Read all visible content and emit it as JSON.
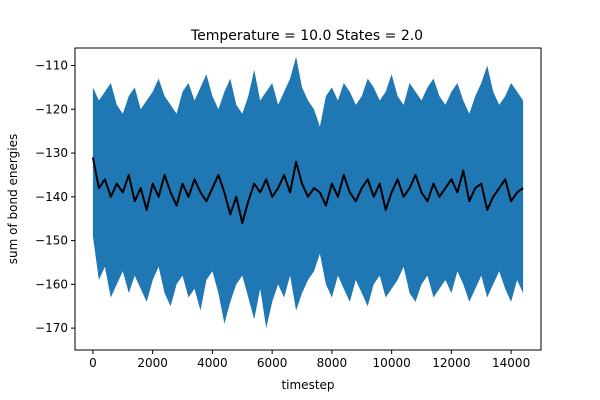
{
  "chart_data": {
    "type": "area",
    "title": "Temperature = 10.0 States = 2.0",
    "xlabel": "timestep",
    "ylabel": "sum of bond energies",
    "xlim": [
      -600,
      15000
    ],
    "ylim": [
      -175,
      -106
    ],
    "xticks": [
      0,
      2000,
      4000,
      6000,
      8000,
      10000,
      12000,
      14000
    ],
    "yticks": [
      -110,
      -120,
      -130,
      -140,
      -150,
      -160,
      -170
    ],
    "grid": false,
    "colors": {
      "band": "#1f77b4",
      "mean_line": "#000000"
    },
    "series": [
      {
        "kind": "band",
        "x": [
          0,
          200,
          400,
          600,
          800,
          1000,
          1200,
          1400,
          1600,
          1800,
          2000,
          2200,
          2400,
          2600,
          2800,
          3000,
          3200,
          3400,
          3600,
          3800,
          4000,
          4200,
          4400,
          4600,
          4800,
          5000,
          5200,
          5400,
          5600,
          5800,
          6000,
          6200,
          6400,
          6600,
          6800,
          7000,
          7200,
          7400,
          7600,
          7800,
          8000,
          8200,
          8400,
          8600,
          8800,
          9000,
          9200,
          9400,
          9600,
          9800,
          10000,
          10200,
          10400,
          10600,
          10800,
          11000,
          11200,
          11400,
          11600,
          11800,
          12000,
          12200,
          12400,
          12600,
          12800,
          13000,
          13200,
          13400,
          13600,
          13800,
          14000,
          14200,
          14400
        ],
        "upper": [
          -115,
          -118,
          -116,
          -114,
          -119,
          -121,
          -117,
          -115,
          -120,
          -118,
          -116,
          -113,
          -117,
          -119,
          -121,
          -116,
          -114,
          -118,
          -115,
          -112,
          -117,
          -120,
          -116,
          -113,
          -119,
          -121,
          -117,
          -111,
          -118,
          -116,
          -114,
          -119,
          -116,
          -113,
          -108,
          -115,
          -118,
          -120,
          -124,
          -117,
          -115,
          -118,
          -114,
          -116,
          -119,
          -117,
          -113,
          -115,
          -118,
          -116,
          -112,
          -117,
          -119,
          -114,
          -116,
          -118,
          -115,
          -113,
          -117,
          -119,
          -116,
          -114,
          -118,
          -121,
          -117,
          -114,
          -110,
          -116,
          -119,
          -117,
          -114,
          -116,
          -118
        ],
        "lower": [
          -149,
          -159,
          -156,
          -163,
          -160,
          -157,
          -162,
          -158,
          -161,
          -164,
          -159,
          -156,
          -162,
          -165,
          -160,
          -158,
          -163,
          -161,
          -166,
          -159,
          -157,
          -162,
          -169,
          -164,
          -160,
          -158,
          -163,
          -168,
          -161,
          -170,
          -164,
          -160,
          -163,
          -158,
          -166,
          -162,
          -159,
          -157,
          -153,
          -160,
          -163,
          -158,
          -161,
          -164,
          -159,
          -162,
          -165,
          -160,
          -158,
          -163,
          -161,
          -159,
          -156,
          -162,
          -164,
          -160,
          -158,
          -163,
          -161,
          -159,
          -162,
          -157,
          -160,
          -164,
          -161,
          -158,
          -163,
          -160,
          -157,
          -161,
          -164,
          -159,
          -162
        ]
      },
      {
        "kind": "line",
        "x": [
          0,
          200,
          400,
          600,
          800,
          1000,
          1200,
          1400,
          1600,
          1800,
          2000,
          2200,
          2400,
          2600,
          2800,
          3000,
          3200,
          3400,
          3600,
          3800,
          4000,
          4200,
          4400,
          4600,
          4800,
          5000,
          5200,
          5400,
          5600,
          5800,
          6000,
          6200,
          6400,
          6600,
          6800,
          7000,
          7200,
          7400,
          7600,
          7800,
          8000,
          8200,
          8400,
          8600,
          8800,
          9000,
          9200,
          9400,
          9600,
          9800,
          10000,
          10200,
          10400,
          10600,
          10800,
          11000,
          11200,
          11400,
          11600,
          11800,
          12000,
          12200,
          12400,
          12600,
          12800,
          13000,
          13200,
          13400,
          13600,
          13800,
          14000,
          14200,
          14400
        ],
        "values": [
          -131,
          -138,
          -136,
          -140,
          -137,
          -139,
          -135,
          -141,
          -138,
          -143,
          -137,
          -140,
          -135,
          -139,
          -142,
          -137,
          -140,
          -136,
          -139,
          -141,
          -138,
          -135,
          -139,
          -144,
          -140,
          -146,
          -141,
          -137,
          -139,
          -136,
          -140,
          -138,
          -135,
          -139,
          -132,
          -137,
          -140,
          -138,
          -139,
          -142,
          -137,
          -140,
          -135,
          -139,
          -141,
          -138,
          -136,
          -140,
          -137,
          -143,
          -139,
          -136,
          -140,
          -138,
          -135,
          -139,
          -141,
          -137,
          -140,
          -138,
          -136,
          -139,
          -134,
          -141,
          -138,
          -137,
          -143,
          -140,
          -138,
          -136,
          -141,
          -139,
          -138
        ]
      }
    ]
  }
}
